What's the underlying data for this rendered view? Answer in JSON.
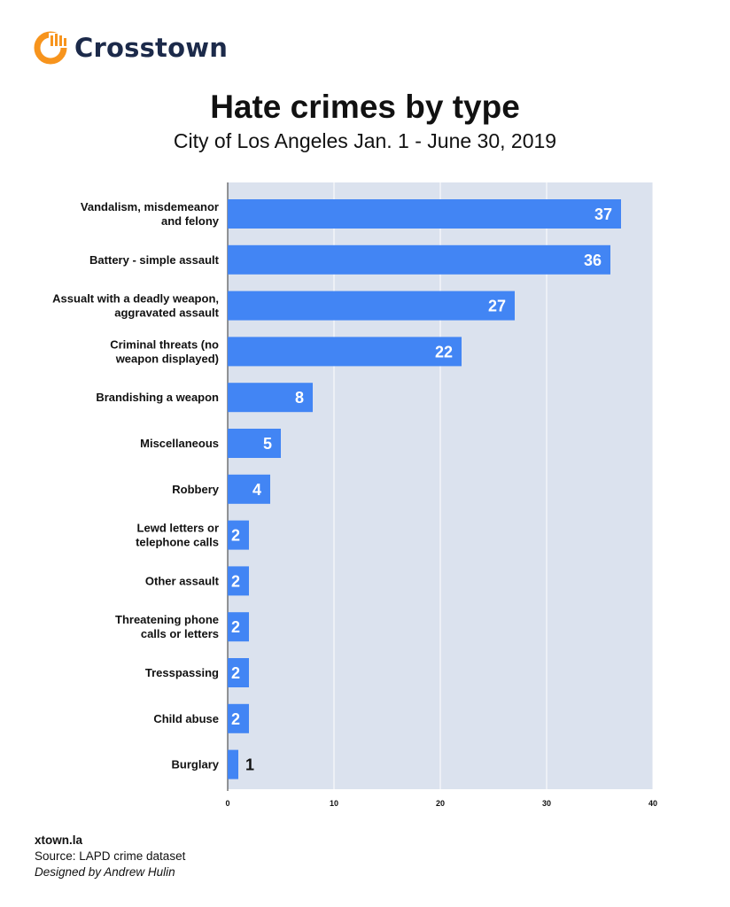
{
  "brand": {
    "name": "Crosstown",
    "logo_icon": "crosstown-logo-icon",
    "accent_color": "#f7941d"
  },
  "title": "Hate crimes by type",
  "subtitle": "City of Los Angeles Jan. 1 - June 30, 2019",
  "footer": {
    "site": "xtown.la",
    "source": "Source: LAPD crime dataset",
    "credit": "Designed by Andrew Hulin"
  },
  "chart_data": {
    "type": "bar",
    "orientation": "horizontal",
    "title": "Hate crimes by type",
    "subtitle": "City of Los Angeles Jan. 1 - June 30, 2019",
    "categories": [
      [
        "Vandalism, misdemeanor",
        "and felony"
      ],
      [
        "Battery - simple assault"
      ],
      [
        "Assualt with a deadly weapon,",
        "aggravated assault"
      ],
      [
        "Criminal threats (no",
        "weapon displayed)"
      ],
      [
        "Brandishing a weapon"
      ],
      [
        "Miscellaneous"
      ],
      [
        "Robbery"
      ],
      [
        "Lewd letters or",
        "telephone calls"
      ],
      [
        "Other assault"
      ],
      [
        "Threatening phone",
        "calls or letters"
      ],
      [
        "Tresspassing"
      ],
      [
        "Child abuse"
      ],
      [
        "Burglary"
      ]
    ],
    "values": [
      37,
      36,
      27,
      22,
      8,
      5,
      4,
      2,
      2,
      2,
      2,
      2,
      1
    ],
    "xlim": [
      0,
      40
    ],
    "xticks": [
      "0",
      "10",
      "20",
      "30",
      "40"
    ],
    "grid": "vertical",
    "bar_color": "#4285f4",
    "plot_background": "#dbe2ee",
    "data_labels": true,
    "legend": "none"
  }
}
